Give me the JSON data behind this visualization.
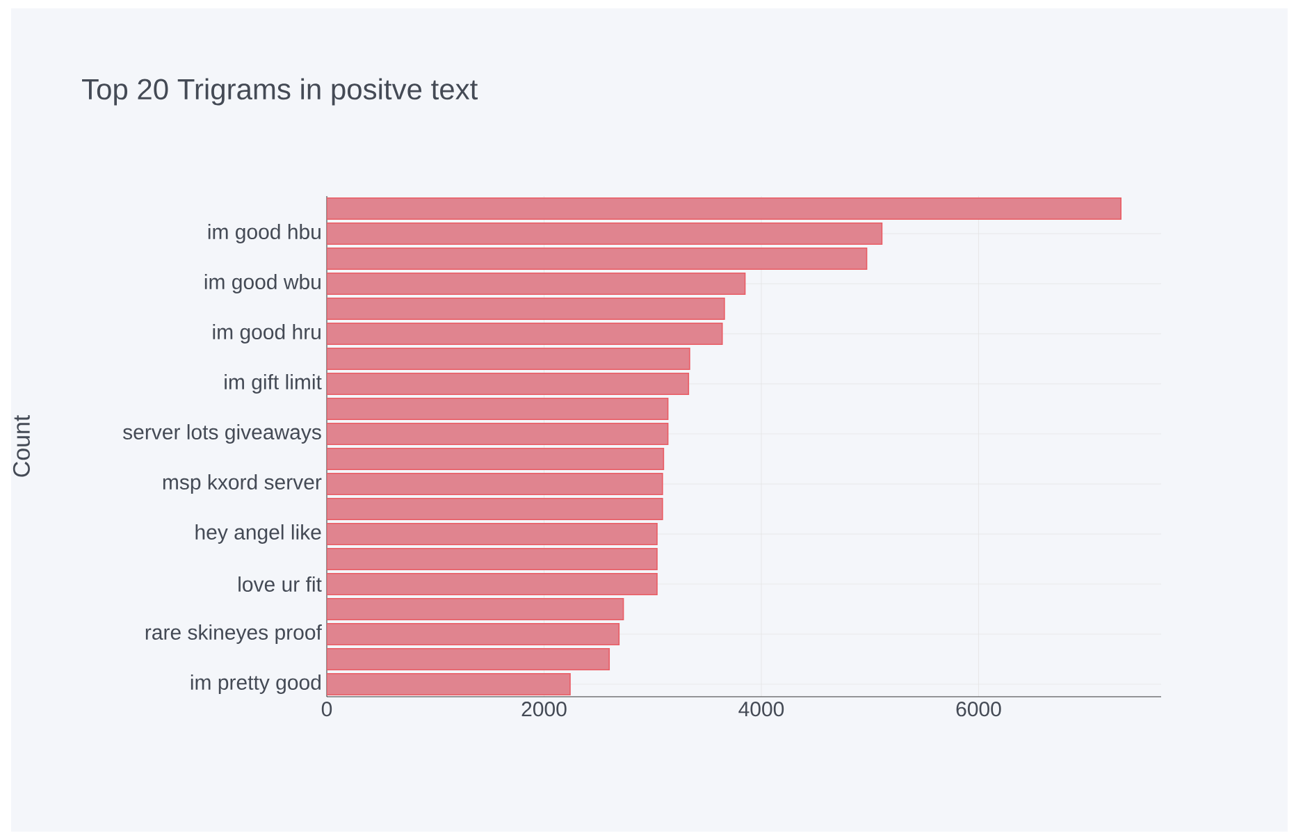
{
  "chart_data": {
    "type": "bar",
    "orientation": "horizontal",
    "title": "Top 20 Trigrams in positve text",
    "ylabel": "Count",
    "categories": [
      null,
      "im good hbu",
      null,
      "im good wbu",
      null,
      "im good hru",
      null,
      "im gift limit",
      null,
      "server lots giveaways",
      null,
      "msp kxord server",
      null,
      "hey angel like",
      null,
      "love ur fit",
      null,
      "rare skineyes proof",
      null,
      "im pretty good"
    ],
    "values": [
      7310,
      5110,
      4970,
      3850,
      3660,
      3640,
      3340,
      3330,
      3140,
      3140,
      3100,
      3090,
      3090,
      3040,
      3040,
      3040,
      2730,
      2690,
      2600,
      2240
    ],
    "color": "#e0848f",
    "xlim": [
      0,
      7680
    ],
    "xticks": [
      0,
      2000,
      4000,
      6000
    ],
    "grid": true
  }
}
